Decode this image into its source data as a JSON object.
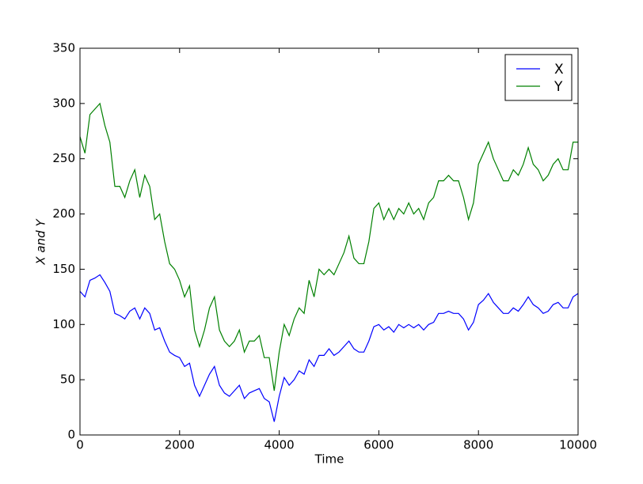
{
  "chart_data": {
    "type": "line",
    "xlabel": "Time",
    "ylabel": "X and Y",
    "x": [
      0,
      100,
      200,
      300,
      400,
      500,
      600,
      700,
      800,
      900,
      1000,
      1100,
      1200,
      1300,
      1400,
      1500,
      1600,
      1700,
      1800,
      1900,
      2000,
      2100,
      2200,
      2300,
      2400,
      2500,
      2600,
      2700,
      2800,
      2900,
      3000,
      3100,
      3200,
      3300,
      3400,
      3500,
      3600,
      3700,
      3800,
      3900,
      4000,
      4100,
      4200,
      4300,
      4400,
      4500,
      4600,
      4700,
      4800,
      4900,
      5000,
      5100,
      5200,
      5300,
      5400,
      5500,
      5600,
      5700,
      5800,
      5900,
      6000,
      6100,
      6200,
      6300,
      6400,
      6500,
      6600,
      6700,
      6800,
      6900,
      7000,
      7100,
      7200,
      7300,
      7400,
      7500,
      7600,
      7700,
      7800,
      7900,
      8000,
      8100,
      8200,
      8300,
      8400,
      8500,
      8600,
      8700,
      8800,
      8900,
      9000,
      9100,
      9200,
      9300,
      9400,
      9500,
      9600,
      9700,
      9800,
      9900,
      10000
    ],
    "series": [
      {
        "name": "X",
        "color": "#0000ff",
        "values": [
          130,
          125,
          140,
          142,
          145,
          138,
          130,
          110,
          108,
          105,
          112,
          115,
          105,
          115,
          110,
          95,
          97,
          85,
          75,
          72,
          70,
          62,
          65,
          45,
          35,
          45,
          55,
          62,
          45,
          38,
          35,
          40,
          45,
          33,
          38,
          40,
          42,
          33,
          30,
          12,
          35,
          52,
          45,
          50,
          58,
          55,
          68,
          62,
          72,
          72,
          78,
          72,
          75,
          80,
          85,
          78,
          75,
          75,
          85,
          98,
          100,
          95,
          98,
          93,
          100,
          97,
          100,
          97,
          100,
          95,
          100,
          102,
          110,
          110,
          112,
          110,
          110,
          105,
          95,
          102,
          118,
          122,
          128,
          120,
          115,
          110,
          110,
          115,
          112,
          118,
          125,
          118,
          115,
          110,
          112,
          118,
          120,
          115,
          115,
          125,
          128
        ]
      },
      {
        "name": "Y",
        "color": "#008000",
        "values": [
          270,
          255,
          290,
          295,
          300,
          280,
          265,
          225,
          225,
          215,
          230,
          240,
          215,
          235,
          225,
          195,
          200,
          175,
          155,
          150,
          140,
          125,
          135,
          95,
          80,
          95,
          115,
          125,
          95,
          85,
          80,
          85,
          95,
          75,
          85,
          85,
          90,
          70,
          70,
          40,
          75,
          100,
          90,
          105,
          115,
          110,
          140,
          125,
          150,
          145,
          150,
          145,
          155,
          165,
          180,
          160,
          155,
          155,
          175,
          205,
          210,
          195,
          205,
          195,
          205,
          200,
          210,
          200,
          205,
          195,
          210,
          215,
          230,
          230,
          235,
          230,
          230,
          215,
          195,
          210,
          245,
          255,
          265,
          250,
          240,
          230,
          230,
          240,
          235,
          245,
          260,
          245,
          240,
          230,
          235,
          245,
          250,
          240,
          240,
          265,
          265
        ]
      }
    ],
    "xlim": [
      0,
      10000
    ],
    "xticks": [
      0,
      2000,
      4000,
      6000,
      8000,
      10000
    ],
    "ylim": [
      0,
      350
    ],
    "yticks": [
      0,
      50,
      100,
      150,
      200,
      250,
      300,
      350
    ],
    "legend": "upper right"
  }
}
